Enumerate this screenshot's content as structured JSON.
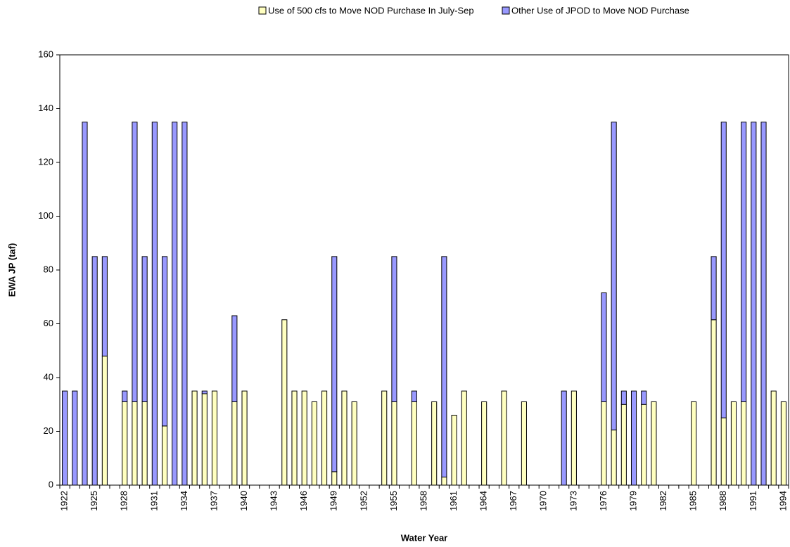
{
  "chart_data": {
    "type": "stacked-bar",
    "x_label": "Water Year",
    "y_label": "EWA JP (taf)",
    "categories": [
      "1922",
      null,
      null,
      "1925",
      null,
      null,
      "1928",
      null,
      null,
      "1931",
      null,
      null,
      "1934",
      null,
      null,
      "1937",
      null,
      null,
      "1940",
      null,
      null,
      "1943",
      null,
      null,
      "1946",
      null,
      null,
      "1949",
      null,
      null,
      "1952",
      null,
      null,
      "1955",
      null,
      null,
      "1958",
      null,
      null,
      "1961",
      null,
      null,
      "1964",
      null,
      null,
      "1967",
      null,
      null,
      "1970",
      null,
      null,
      "1973",
      null,
      null,
      "1976",
      null,
      null,
      "1979",
      null,
      null,
      "1982",
      null,
      null,
      "1985",
      null,
      null,
      "1988",
      null,
      null,
      "1991",
      null,
      null,
      "1994"
    ],
    "series": [
      {
        "name": "Use of 500 cfs to Move NOD Purchase In July-Sep",
        "color": "#ffffc0",
        "values": [
          0,
          0,
          0,
          0,
          48,
          0,
          31,
          31,
          31,
          0,
          22,
          0,
          0,
          35,
          34,
          35,
          0,
          31,
          35,
          0,
          0,
          0,
          61.5,
          35,
          35,
          31,
          35,
          5,
          35,
          31,
          0,
          0,
          35,
          31,
          0,
          31,
          0,
          31,
          3,
          26,
          35,
          0,
          31,
          0,
          35,
          0,
          31,
          0,
          0,
          0,
          0,
          35,
          0,
          0,
          31,
          20.5,
          30,
          0,
          30,
          31,
          0,
          0,
          0,
          31,
          0,
          61.5,
          25,
          31,
          31,
          0,
          0,
          35,
          31
        ]
      },
      {
        "name": "Other Use of JPOD to Move NOD Purchase",
        "color": "#9999ff",
        "values": [
          35,
          35,
          135,
          85,
          37,
          0,
          4,
          104,
          54,
          135,
          63,
          135,
          135,
          0,
          1,
          0,
          0,
          32,
          0,
          0,
          0,
          0,
          0,
          0,
          0,
          0,
          0,
          80,
          0,
          0,
          0,
          0,
          0,
          54,
          0,
          4,
          0,
          0,
          82,
          0,
          0,
          0,
          0,
          0,
          0,
          0,
          0,
          0,
          0,
          0,
          35,
          0,
          0,
          0,
          40.5,
          114.5,
          5,
          35,
          5,
          0,
          0,
          0,
          0,
          0,
          0,
          23.5,
          110,
          0,
          104,
          135,
          135,
          0,
          0
        ]
      }
    ],
    "ylim": [
      0,
      160
    ],
    "yticks": [
      0,
      20,
      40,
      60,
      80,
      100,
      120,
      140,
      160
    ],
    "legend": "top-right"
  }
}
